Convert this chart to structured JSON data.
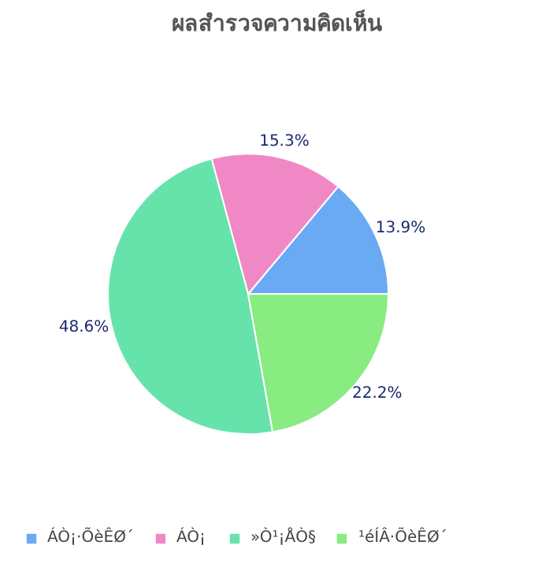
{
  "chart_data": {
    "type": "pie",
    "title": "ผลสำรวจความคิดเห็น",
    "categories": [
      "ÁÒ¡·ÕèÊØ´",
      "ÁÒ¡",
      "»Ò¹¡ÅÒ§",
      "¹éÍÂ·ÕèÊØ´"
    ],
    "values": [
      13.9,
      15.3,
      48.6,
      22.2
    ],
    "colors": [
      "#6aa9f4",
      "#f188c6",
      "#66e3aa",
      "#88ec80"
    ],
    "value_labels": [
      "13.9%",
      "15.3%",
      "48.6%",
      "22.2%"
    ],
    "legend": "bottom"
  }
}
